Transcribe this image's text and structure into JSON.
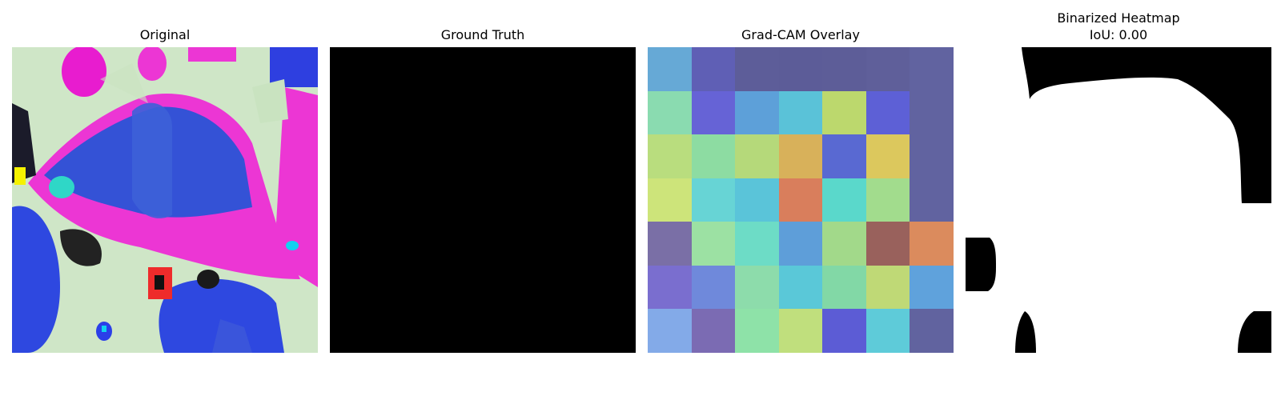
{
  "panels": [
    {
      "title": "Original"
    },
    {
      "title": "Ground Truth"
    },
    {
      "title": "Grad-CAM Overlay"
    },
    {
      "title": "Binarized Heatmap",
      "subtitle": "IoU: 0.00"
    }
  ],
  "gradcam_grid_colors": [
    [
      "#66a9d6",
      "#5f5fb5",
      "#5d5d99",
      "#5c5c98",
      "#5d5d98",
      "#5f5f9a",
      "#6163a0"
    ],
    [
      "#8adbb0",
      "#6663d6",
      "#5da0d9",
      "#5ac2d8",
      "#bcd86d",
      "#5d60d6",
      "#6163a0"
    ],
    [
      "#b9dd7e",
      "#8ddca2",
      "#b5d97a",
      "#d8b15a",
      "#5969d2",
      "#dcc85d",
      "#6163a0"
    ],
    [
      "#cde47a",
      "#67d4d5",
      "#5ac4d9",
      "#d97e5c",
      "#5ad8cb",
      "#a2dc8d",
      "#6163a0"
    ],
    [
      "#7a6fa6",
      "#9ce1a3",
      "#6ddcc6",
      "#5e9ed9",
      "#a2d98a",
      "#99615c",
      "#db8b5d"
    ],
    [
      "#7a6ecf",
      "#6f89db",
      "#8ddcab",
      "#5ac8d8",
      "#82d8a6",
      "#bfd976",
      "#5fa2dc"
    ],
    [
      "#83aae8",
      "#7b6bb3",
      "#8ee2a8",
      "#c0df7d",
      "#5c5cd5",
      "#5ecbd9",
      "#61639f"
    ]
  ]
}
